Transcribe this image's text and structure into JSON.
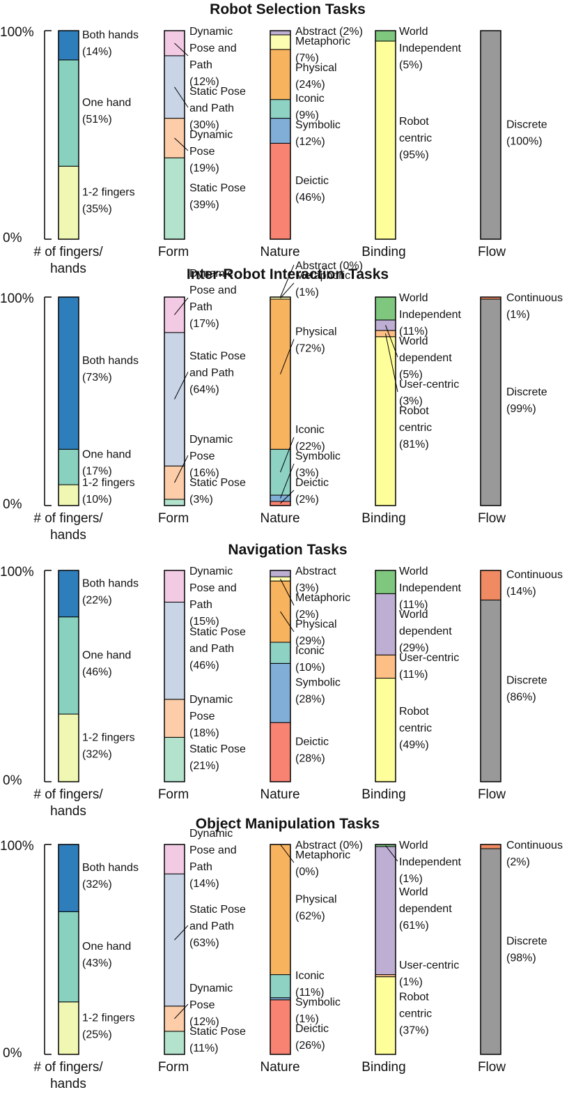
{
  "chart_data": [
    {
      "type": "stacked-bar",
      "title": "Robot Selection Tasks",
      "categories": [
        "# of fingers/\nhands",
        "Form",
        "Nature",
        "Binding",
        "Flow"
      ],
      "yticks": [
        "0%",
        "100%"
      ],
      "bars": [
        {
          "segments": [
            {
              "label": "1-2 fingers\n(35%)",
              "value": 35,
              "color": "#f0f7b3"
            },
            {
              "label": "One hand\n(51%)",
              "value": 51,
              "color": "#88d1bf"
            },
            {
              "label": "Both hands\n(14%)",
              "value": 14,
              "color": "#2f7ebc"
            }
          ]
        },
        {
          "segments": [
            {
              "label": "Static Pose\n(39%)",
              "value": 39,
              "color": "#b3e3cd"
            },
            {
              "label": "Dynamic\nPose\n(19%)",
              "value": 19,
              "color": "#fccda8"
            },
            {
              "label": "Static Pose\nand Path\n(30%)",
              "value": 30,
              "color": "#c9d4e7"
            },
            {
              "label": "Dynamic\nPose and\nPath\n(12%)",
              "value": 12,
              "color": "#f3cae3"
            }
          ]
        },
        {
          "segments": [
            {
              "label": "Deictic\n(46%)",
              "value": 46,
              "color": "#f98372"
            },
            {
              "label": "Symbolic\n(12%)",
              "value": 12,
              "color": "#80aed6"
            },
            {
              "label": "Iconic\n(9%)",
              "value": 9,
              "color": "#8ed2c4"
            },
            {
              "label": "Physical\n(24%)",
              "value": 24,
              "color": "#f8b35f"
            },
            {
              "label": "Metaphoric\n(7%)",
              "value": 7,
              "color": "#fdfdb2"
            },
            {
              "label": "Abstract (2%)",
              "value": 2,
              "color": "#bdaed4"
            }
          ]
        },
        {
          "segments": [
            {
              "label": "Robot\ncentric\n(95%)",
              "value": 95,
              "color": "#fefe9a"
            },
            {
              "label": "World\nIndependent\n(5%)",
              "value": 5,
              "color": "#7fc77e"
            }
          ]
        },
        {
          "segments": [
            {
              "label": "Discrete\n(100%)",
              "value": 100,
              "color": "#999999"
            }
          ]
        }
      ]
    },
    {
      "type": "stacked-bar",
      "title": "Inter-Robot Interaction Tasks",
      "categories": [
        "# of fingers/\nhands",
        "Form",
        "Nature",
        "Binding",
        "Flow"
      ],
      "yticks": [
        "0%",
        "100%"
      ],
      "bars": [
        {
          "segments": [
            {
              "label": "1-2 fingers\n(10%)",
              "value": 10,
              "color": "#f0f7b3"
            },
            {
              "label": "One hand\n(17%)",
              "value": 17,
              "color": "#88d1bf"
            },
            {
              "label": "Both hands\n(73%)",
              "value": 73,
              "color": "#2f7ebc"
            }
          ]
        },
        {
          "segments": [
            {
              "label": "Static Pose\n(3%)",
              "value": 3,
              "color": "#b3e3cd"
            },
            {
              "label": "Dynamic\nPose\n(16%)",
              "value": 16,
              "color": "#fccda8"
            },
            {
              "label": "Static Pose\nand Path\n(64%)",
              "value": 64,
              "color": "#c9d4e7"
            },
            {
              "label": "Dynamic\nPose and\nPath\n(17%)",
              "value": 17,
              "color": "#f3cae3"
            }
          ]
        },
        {
          "segments": [
            {
              "label": "Deictic\n(2%)",
              "value": 2,
              "color": "#f98372"
            },
            {
              "label": "Symbolic\n(3%)",
              "value": 3,
              "color": "#80aed6"
            },
            {
              "label": "Iconic\n(22%)",
              "value": 22,
              "color": "#8ed2c4"
            },
            {
              "label": "Physical\n(72%)",
              "value": 72,
              "color": "#f8b35f"
            },
            {
              "label": "Metaphoric\n(1%)",
              "value": 1,
              "color": "#fdfdb2"
            },
            {
              "label": "Abstract (0%)",
              "value": 0,
              "color": "#bdaed4"
            }
          ]
        },
        {
          "segments": [
            {
              "label": "Robot\ncentric\n(81%)",
              "value": 81,
              "color": "#fefe9a"
            },
            {
              "label": "User-centric\n(3%)",
              "value": 3,
              "color": "#fdbf86"
            },
            {
              "label": "World\ndependent\n(5%)",
              "value": 5,
              "color": "#beaed4"
            },
            {
              "label": "World\nIndependent\n(11%)",
              "value": 11,
              "color": "#7fc77e"
            }
          ]
        },
        {
          "segments": [
            {
              "label": "Discrete\n(99%)",
              "value": 99,
              "color": "#999999"
            },
            {
              "label": "Continuous\n(1%)",
              "value": 1,
              "color": "#ef8a62"
            }
          ]
        }
      ]
    },
    {
      "type": "stacked-bar",
      "title": "Navigation Tasks",
      "categories": [
        "# of fingers/\nhands",
        "Form",
        "Nature",
        "Binding",
        "Flow"
      ],
      "yticks": [
        "0%",
        "100%"
      ],
      "bars": [
        {
          "segments": [
            {
              "label": "1-2 fingers\n(32%)",
              "value": 32,
              "color": "#f0f7b3"
            },
            {
              "label": "One hand\n(46%)",
              "value": 46,
              "color": "#88d1bf"
            },
            {
              "label": "Both hands\n(22%)",
              "value": 22,
              "color": "#2f7ebc"
            }
          ]
        },
        {
          "segments": [
            {
              "label": "Static Pose\n(21%)",
              "value": 21,
              "color": "#b3e3cd"
            },
            {
              "label": "Dynamic\nPose\n(18%)",
              "value": 18,
              "color": "#fccda8"
            },
            {
              "label": "Static Pose\nand Path\n(46%)",
              "value": 46,
              "color": "#c9d4e7"
            },
            {
              "label": "Dynamic\nPose and\nPath\n(15%)",
              "value": 15,
              "color": "#f3cae3"
            }
          ]
        },
        {
          "segments": [
            {
              "label": "Deictic\n(28%)",
              "value": 28,
              "color": "#f98372"
            },
            {
              "label": "Symbolic\n(28%)",
              "value": 28,
              "color": "#80aed6"
            },
            {
              "label": "Iconic\n(10%)",
              "value": 10,
              "color": "#8ed2c4"
            },
            {
              "label": "Physical\n(29%)",
              "value": 29,
              "color": "#f8b35f"
            },
            {
              "label": "Metaphoric\n(2%)",
              "value": 2,
              "color": "#fdfdb2"
            },
            {
              "label": "Abstract\n(3%)",
              "value": 3,
              "color": "#bdaed4"
            }
          ]
        },
        {
          "segments": [
            {
              "label": "Robot\ncentric\n(49%)",
              "value": 49,
              "color": "#fefe9a"
            },
            {
              "label": "User-centric\n(11%)",
              "value": 11,
              "color": "#fdbf86"
            },
            {
              "label": "World\ndependent\n(29%)",
              "value": 29,
              "color": "#beaed4"
            },
            {
              "label": "World\nIndependent\n(11%)",
              "value": 11,
              "color": "#7fc77e"
            }
          ]
        },
        {
          "segments": [
            {
              "label": "Discrete\n(86%)",
              "value": 86,
              "color": "#999999"
            },
            {
              "label": "Continuous\n(14%)",
              "value": 14,
              "color": "#ef8a62"
            }
          ]
        }
      ]
    },
    {
      "type": "stacked-bar",
      "title": "Object Manipulation Tasks",
      "categories": [
        "# of fingers/\nhands",
        "Form",
        "Nature",
        "Binding",
        "Flow"
      ],
      "yticks": [
        "0%",
        "100%"
      ],
      "bars": [
        {
          "segments": [
            {
              "label": "1-2 fingers\n(25%)",
              "value": 25,
              "color": "#f0f7b3"
            },
            {
              "label": "One hand\n(43%)",
              "value": 43,
              "color": "#88d1bf"
            },
            {
              "label": "Both hands\n(32%)",
              "value": 32,
              "color": "#2f7ebc"
            }
          ]
        },
        {
          "segments": [
            {
              "label": "Static Pose\n(11%)",
              "value": 11,
              "color": "#b3e3cd"
            },
            {
              "label": "Dynamic\nPose\n(12%)",
              "value": 12,
              "color": "#fccda8"
            },
            {
              "label": "Static Pose\nand Path\n(63%)",
              "value": 63,
              "color": "#c9d4e7"
            },
            {
              "label": "Dynamic\nPose and\nPath\n(14%)",
              "value": 14,
              "color": "#f3cae3"
            }
          ]
        },
        {
          "segments": [
            {
              "label": "Deictic\n(26%)",
              "value": 26,
              "color": "#f98372"
            },
            {
              "label": "Symbolic\n(1%)",
              "value": 1,
              "color": "#80aed6"
            },
            {
              "label": "Iconic\n(11%)",
              "value": 11,
              "color": "#8ed2c4"
            },
            {
              "label": "Physical\n(62%)",
              "value": 62,
              "color": "#f8b35f"
            },
            {
              "label": "Metaphoric\n(0%)",
              "value": 0,
              "color": "#fdfdb2"
            },
            {
              "label": "Abstract (0%)",
              "value": 0,
              "color": "#bdaed4"
            }
          ]
        },
        {
          "segments": [
            {
              "label": "Robot\ncentric\n(37%)",
              "value": 37,
              "color": "#fefe9a"
            },
            {
              "label": "User-centric\n(1%)",
              "value": 1,
              "color": "#fdbf86"
            },
            {
              "label": "World\ndependent\n(61%)",
              "value": 61,
              "color": "#beaed4"
            },
            {
              "label": "World\nIndependent\n(1%)",
              "value": 1,
              "color": "#7fc77e"
            }
          ]
        },
        {
          "segments": [
            {
              "label": "Discrete\n(98%)",
              "value": 98,
              "color": "#999999"
            },
            {
              "label": "Continuous\n(2%)",
              "value": 2,
              "color": "#ef8a62"
            }
          ]
        }
      ]
    }
  ]
}
